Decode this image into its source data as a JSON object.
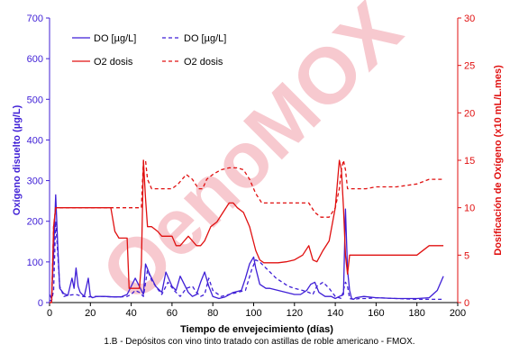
{
  "watermark": "OenoMOX",
  "caption": "1.B - Depósitos con vino tinto tratado con astillas de roble americano - FMOX.",
  "colors": {
    "blue": "#3f1fd6",
    "red": "#e01010",
    "watermark": "#f7c9cf"
  },
  "chart_data": {
    "type": "line",
    "xlabel": "Tiempo de envejecimiento (días)",
    "ylabel_left": "Oxígeno disuelto (µg/L)",
    "ylabel_right": "Dosificación de Oxígeno (x10 mL/L.mes)",
    "xlim": [
      0,
      200
    ],
    "ylim_left": [
      0,
      700
    ],
    "ylim_right": [
      0,
      30
    ],
    "xticks": [
      0,
      20,
      40,
      60,
      80,
      100,
      120,
      140,
      160,
      180,
      200
    ],
    "yticks_left": [
      0,
      100,
      200,
      300,
      400,
      500,
      600,
      700
    ],
    "yticks_right": [
      0,
      5,
      10,
      15,
      20,
      25,
      30
    ],
    "grid": false,
    "legend_position": "top-left",
    "series": [
      {
        "name": "DO [µg/L]",
        "axis": "left",
        "style": "solid",
        "color": "#3f1fd6",
        "x": [
          0,
          1,
          2,
          3,
          4,
          5,
          7,
          9,
          11,
          12,
          13,
          14,
          15,
          17,
          19,
          20,
          21,
          23,
          27,
          31,
          35,
          38,
          42,
          44,
          46,
          47,
          49,
          52,
          55,
          57,
          60,
          62,
          64,
          66,
          68,
          70,
          72,
          74,
          76,
          78,
          80,
          83,
          86,
          90,
          94,
          96,
          98,
          100,
          101,
          103,
          106,
          108,
          112,
          116,
          120,
          123,
          126,
          128,
          130,
          132,
          135,
          138,
          140,
          142,
          144,
          145,
          146,
          147,
          148,
          149,
          150,
          154,
          160,
          170,
          180,
          186,
          190,
          193
        ],
        "y": [
          20,
          10,
          120,
          265,
          140,
          35,
          22,
          18,
          60,
          35,
          85,
          40,
          25,
          15,
          60,
          15,
          12,
          15,
          15,
          14,
          14,
          20,
          60,
          40,
          20,
          95,
          70,
          40,
          25,
          75,
          40,
          30,
          65,
          45,
          25,
          15,
          20,
          50,
          75,
          40,
          15,
          10,
          14,
          25,
          30,
          60,
          95,
          112,
          85,
          45,
          35,
          35,
          30,
          25,
          20,
          20,
          30,
          45,
          50,
          25,
          15,
          15,
          10,
          15,
          20,
          230,
          80,
          30,
          10,
          8,
          12,
          15,
          12,
          10,
          10,
          12,
          30,
          65
        ]
      },
      {
        "name": "DO [µg/L]",
        "axis": "left",
        "style": "dashed",
        "color": "#3f1fd6",
        "x": [
          0,
          1,
          2,
          3,
          4,
          5,
          7,
          9,
          13,
          16,
          19,
          22,
          26,
          31,
          35,
          38,
          40,
          42,
          44,
          46,
          48,
          50,
          52,
          55,
          58,
          61,
          64,
          67,
          70,
          72,
          74,
          76,
          78,
          80,
          84,
          88,
          92,
          96,
          99,
          101,
          103,
          105,
          108,
          111,
          114,
          117,
          120,
          124,
          127,
          129,
          131,
          134,
          137,
          140,
          143,
          145,
          146,
          147,
          149,
          152,
          156,
          160,
          170,
          180,
          186,
          193
        ],
        "y": [
          5,
          5,
          30,
          200,
          120,
          40,
          15,
          18,
          20,
          15,
          14,
          15,
          15,
          14,
          14,
          15,
          20,
          30,
          25,
          15,
          80,
          55,
          40,
          20,
          50,
          30,
          15,
          35,
          40,
          25,
          15,
          20,
          60,
          30,
          15,
          20,
          25,
          30,
          80,
          105,
          100,
          90,
          75,
          60,
          50,
          40,
          35,
          30,
          25,
          20,
          40,
          50,
          35,
          15,
          10,
          50,
          40,
          10,
          8,
          10,
          10,
          12,
          10,
          8,
          8,
          8
        ]
      },
      {
        "name": "O2 dosis",
        "axis": "right",
        "style": "solid",
        "color": "#e01010",
        "x": [
          0,
          1,
          2,
          3,
          5,
          10,
          20,
          30,
          32,
          34,
          36,
          38,
          39,
          40,
          42,
          44,
          45,
          46,
          47,
          48,
          50,
          53,
          55,
          57,
          60,
          62,
          64,
          66,
          68,
          70,
          72,
          74,
          76,
          79,
          82,
          85,
          88,
          90,
          92,
          95,
          98,
          101,
          103,
          105,
          108,
          112,
          116,
          120,
          124,
          127,
          129,
          131,
          134,
          137,
          140,
          142,
          143,
          144,
          145,
          146,
          147,
          148,
          150,
          160,
          170,
          180,
          186,
          190,
          193
        ],
        "y": [
          0,
          0,
          8,
          10,
          10,
          10,
          10,
          10,
          7.5,
          6.8,
          6.8,
          6.8,
          1.5,
          1.5,
          1.5,
          1.5,
          4,
          15,
          11,
          8,
          8,
          7.5,
          7,
          7,
          7,
          6,
          6,
          6.5,
          7,
          6.5,
          6,
          6,
          6.5,
          8,
          8.5,
          9.5,
          10.5,
          10.5,
          10,
          9.5,
          8,
          5.5,
          4.5,
          4.2,
          4.2,
          4.2,
          4.3,
          4.5,
          5,
          6,
          4.5,
          4.3,
          5.5,
          6.5,
          10,
          15,
          14,
          10,
          5,
          3,
          5,
          5,
          5,
          5,
          5,
          5,
          6,
          6,
          6
        ]
      },
      {
        "name": "O2 dosis",
        "axis": "right",
        "style": "dashed",
        "color": "#e01010",
        "x": [
          0,
          1,
          2,
          3,
          5,
          10,
          20,
          30,
          35,
          40,
          42,
          44,
          45,
          46,
          47,
          48,
          50,
          55,
          60,
          63,
          67,
          70,
          73,
          75,
          77,
          80,
          84,
          88,
          92,
          95,
          98,
          101,
          104,
          108,
          112,
          116,
          120,
          124,
          127,
          130,
          133,
          137,
          140,
          142,
          143,
          144,
          145,
          146,
          147,
          148,
          150,
          155,
          160,
          170,
          180,
          186,
          190,
          193
        ],
        "y": [
          0,
          0,
          8,
          10,
          10,
          10,
          10,
          10,
          10,
          10,
          10,
          10,
          10,
          15,
          15,
          13,
          12,
          12,
          12,
          12.5,
          13.5,
          13,
          12,
          12,
          13,
          13.5,
          14,
          14.2,
          14.2,
          14,
          13,
          11.5,
          10.5,
          10.5,
          10.5,
          10.5,
          10.5,
          10.5,
          10.5,
          9.5,
          9,
          9,
          10,
          12,
          14,
          15,
          14,
          12,
          12,
          12,
          12,
          12,
          12.2,
          12.2,
          12.5,
          13,
          13,
          13
        ]
      }
    ]
  }
}
